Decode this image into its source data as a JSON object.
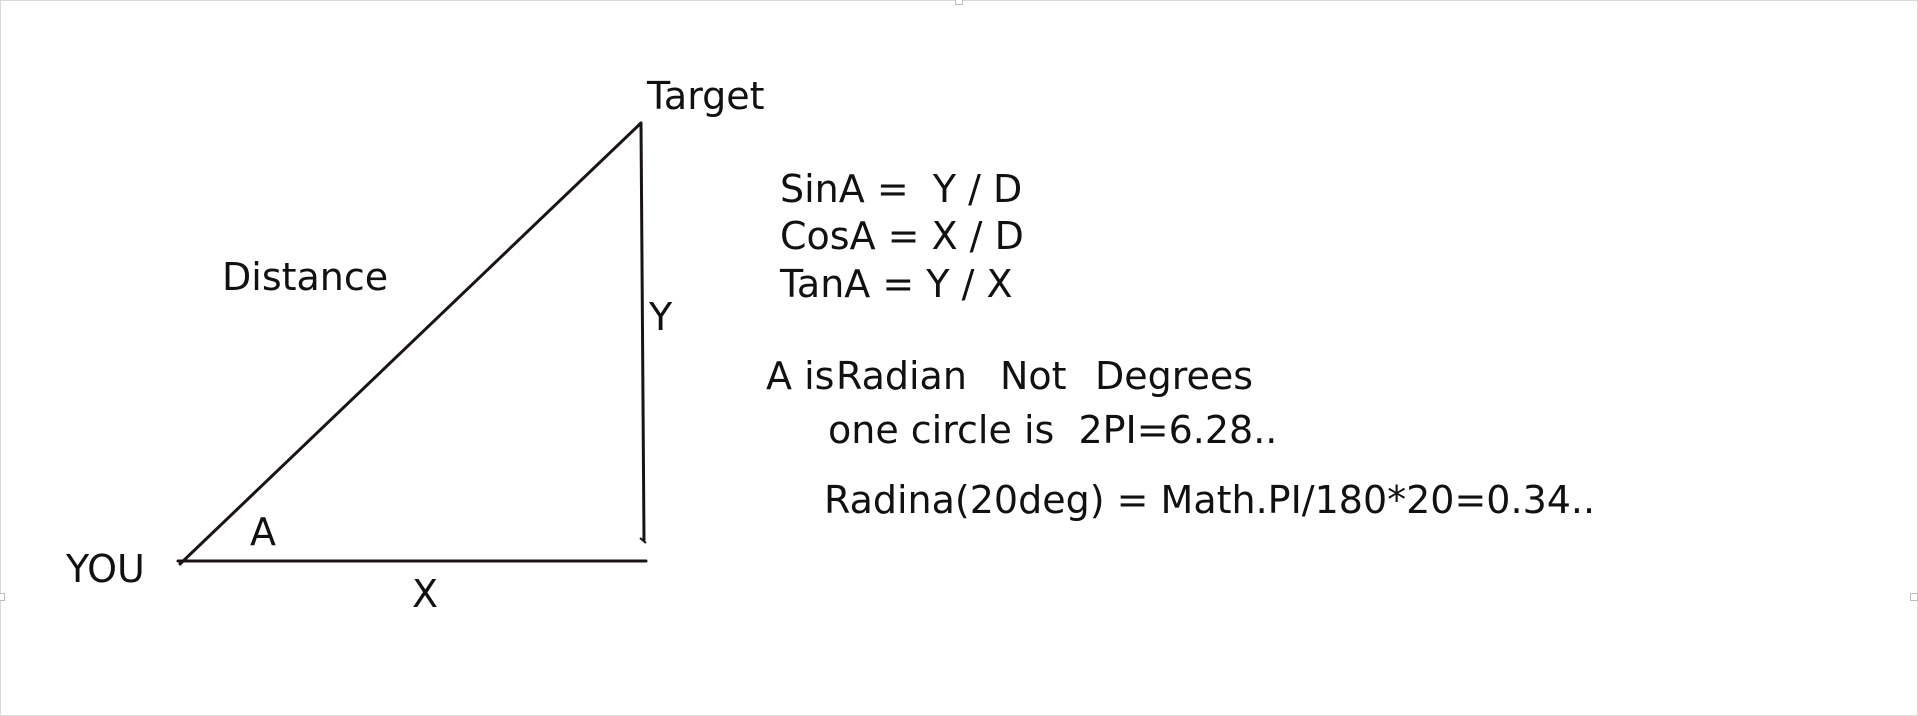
{
  "diagram": {
    "labels": {
      "target": "Target",
      "you": "YOU",
      "distance": "Distance",
      "angle": "A",
      "side_y": "Y",
      "side_x": "X"
    },
    "equations": {
      "sin": "SinA =  Y / D",
      "cos": "CosA = X / D",
      "tan": "TanA = Y / X"
    },
    "notes": {
      "radian_a": "A is",
      "radian_b": "Radian",
      "radian_c": "Not",
      "radian_d": "Degrees",
      "circle": "one circle is  2PI=6.28..",
      "conversion": "Radina(20deg) = Math.PI/180*20=0.34.."
    },
    "colors": {
      "line": "#1a1414",
      "text": "#111111",
      "border": "#d9d9d9"
    }
  }
}
